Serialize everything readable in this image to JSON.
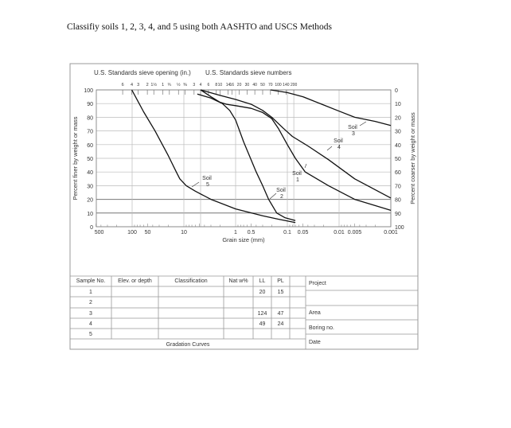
{
  "question": "Classifiy soils 1, 2, 3, 4, and 5 using both AASHTO and USCS Methods",
  "chart_data": {
    "type": "line",
    "header_left": "U.S. Standards sieve opening (in.)",
    "header_right": "U.S. Standards sieve numbers",
    "xlabel": "Grain size (mm)",
    "ylabel": "Percent finer by weight or mass",
    "ylabel_right": "Percent coarser by weight or mass",
    "x_scale": "log",
    "x_reversed": true,
    "xlim": [
      500,
      0.001
    ],
    "ylim": [
      0,
      100
    ],
    "grid": true,
    "x_tick_labels": [
      {
        "value": 500,
        "label": "500"
      },
      {
        "value": 100,
        "label": "100"
      },
      {
        "value": 50,
        "label": "50"
      },
      {
        "value": 10,
        "label": "10"
      },
      {
        "value": 1,
        "label": "1"
      },
      {
        "value": 0.5,
        "label": "0.5"
      },
      {
        "value": 0.1,
        "label": "0.1"
      },
      {
        "value": 0.05,
        "label": "0.05"
      },
      {
        "value": 0.01,
        "label": "0.01"
      },
      {
        "value": 0.005,
        "label": "0.005"
      },
      {
        "value": 0.001,
        "label": "0.001"
      }
    ],
    "y_ticks": [
      0,
      10,
      20,
      30,
      40,
      50,
      60,
      70,
      80,
      90,
      100
    ],
    "y_ticks_right": [
      100,
      90,
      80,
      70,
      60,
      50,
      40,
      30,
      20,
      10,
      0
    ],
    "sieve_openings_in": [
      {
        "mm": 152.4,
        "label": "6"
      },
      {
        "mm": 101.6,
        "label": "4"
      },
      {
        "mm": 76.2,
        "label": "3"
      },
      {
        "mm": 50.8,
        "label": "2"
      },
      {
        "mm": 38.1,
        "label": "1½"
      },
      {
        "mm": 25.4,
        "label": "1"
      },
      {
        "mm": 19.05,
        "label": "¾"
      },
      {
        "mm": 12.7,
        "label": "½"
      },
      {
        "mm": 9.525,
        "label": "⅜"
      }
    ],
    "sieve_numbers": [
      {
        "mm": 6.35,
        "label": "3"
      },
      {
        "mm": 4.75,
        "label": "4"
      },
      {
        "mm": 3.35,
        "label": "6"
      },
      {
        "mm": 2.36,
        "label": "8"
      },
      {
        "mm": 2.0,
        "label": "10"
      },
      {
        "mm": 1.4,
        "label": "14"
      },
      {
        "mm": 1.18,
        "label": "16"
      },
      {
        "mm": 0.85,
        "label": "20"
      },
      {
        "mm": 0.6,
        "label": "30"
      },
      {
        "mm": 0.425,
        "label": "40"
      },
      {
        "mm": 0.3,
        "label": "50"
      },
      {
        "mm": 0.212,
        "label": "70"
      },
      {
        "mm": 0.15,
        "label": "100"
      },
      {
        "mm": 0.106,
        "label": "140"
      },
      {
        "mm": 0.075,
        "label": "200"
      }
    ],
    "series": [
      {
        "name": "Soil 1",
        "label_word": "Soil",
        "label_num": "1",
        "points": [
          [
            4.75,
            100
          ],
          [
            3,
            95
          ],
          [
            2,
            91
          ],
          [
            1.5,
            89.5
          ],
          [
            1,
            88.5
          ],
          [
            0.5,
            86.5
          ],
          [
            0.3,
            83.5
          ],
          [
            0.2,
            79
          ],
          [
            0.15,
            72
          ],
          [
            0.1,
            60
          ],
          [
            0.07,
            50
          ],
          [
            0.045,
            40
          ],
          [
            0.016,
            30
          ],
          [
            0.005,
            20
          ],
          [
            0.001,
            12
          ]
        ]
      },
      {
        "name": "Soil 2",
        "label_word": "Soil",
        "label_num": "2",
        "points": [
          [
            5.5,
            97
          ],
          [
            3,
            94
          ],
          [
            1.8,
            90
          ],
          [
            1.3,
            85
          ],
          [
            1.0,
            78
          ],
          [
            0.7,
            62
          ],
          [
            0.4,
            40
          ],
          [
            0.3,
            30
          ],
          [
            0.23,
            20
          ],
          [
            0.16,
            10
          ],
          [
            0.11,
            6.5
          ],
          [
            0.07,
            4.5
          ]
        ]
      },
      {
        "name": "Soil 3",
        "label_word": "Soil",
        "label_num": "3",
        "points": [
          [
            0.212,
            100
          ],
          [
            0.1,
            98
          ],
          [
            0.05,
            95
          ],
          [
            0.02,
            89
          ],
          [
            0.01,
            84.5
          ],
          [
            0.005,
            80
          ],
          [
            0.002,
            77
          ],
          [
            0.001,
            74
          ]
        ]
      },
      {
        "name": "Soil 4",
        "label_word": "Soil",
        "label_num": "4",
        "points": [
          [
            4.75,
            100
          ],
          [
            2,
            96
          ],
          [
            1,
            93
          ],
          [
            0.5,
            89.5
          ],
          [
            0.3,
            85
          ],
          [
            0.2,
            80
          ],
          [
            0.12,
            72
          ],
          [
            0.08,
            66
          ],
          [
            0.04,
            59
          ],
          [
            0.016,
            49
          ],
          [
            0.005,
            35
          ],
          [
            0.001,
            21
          ]
        ]
      },
      {
        "name": "Soil 5",
        "label_word": "Soil",
        "label_num": "5",
        "points": [
          [
            101.6,
            100
          ],
          [
            60,
            84
          ],
          [
            36,
            70
          ],
          [
            20,
            52
          ],
          [
            14,
            40
          ],
          [
            12,
            35
          ],
          [
            9,
            30
          ],
          [
            6,
            26
          ],
          [
            3,
            20
          ],
          [
            1,
            13
          ],
          [
            0.3,
            8
          ],
          [
            0.15,
            5.5
          ],
          [
            0.07,
            3
          ]
        ]
      }
    ]
  },
  "table": {
    "headers": [
      "Sample No.",
      "Elev. or depth",
      "Classification",
      "Nat w%",
      "LL",
      "PL",
      ""
    ],
    "rows": [
      [
        "1",
        "",
        "",
        "",
        "20",
        "15",
        ""
      ],
      [
        "2",
        "",
        "",
        "",
        "",
        "",
        ""
      ],
      [
        "3",
        "",
        "",
        "",
        "124",
        "47",
        ""
      ],
      [
        "4",
        "",
        "",
        "",
        "49",
        "24",
        ""
      ],
      [
        "5",
        "",
        "",
        "",
        "",
        "",
        ""
      ]
    ],
    "footer": "Gradation Curves",
    "side": {
      "project": "Project",
      "area": "Area",
      "boring": "Boring no.",
      "date": "Date"
    }
  }
}
